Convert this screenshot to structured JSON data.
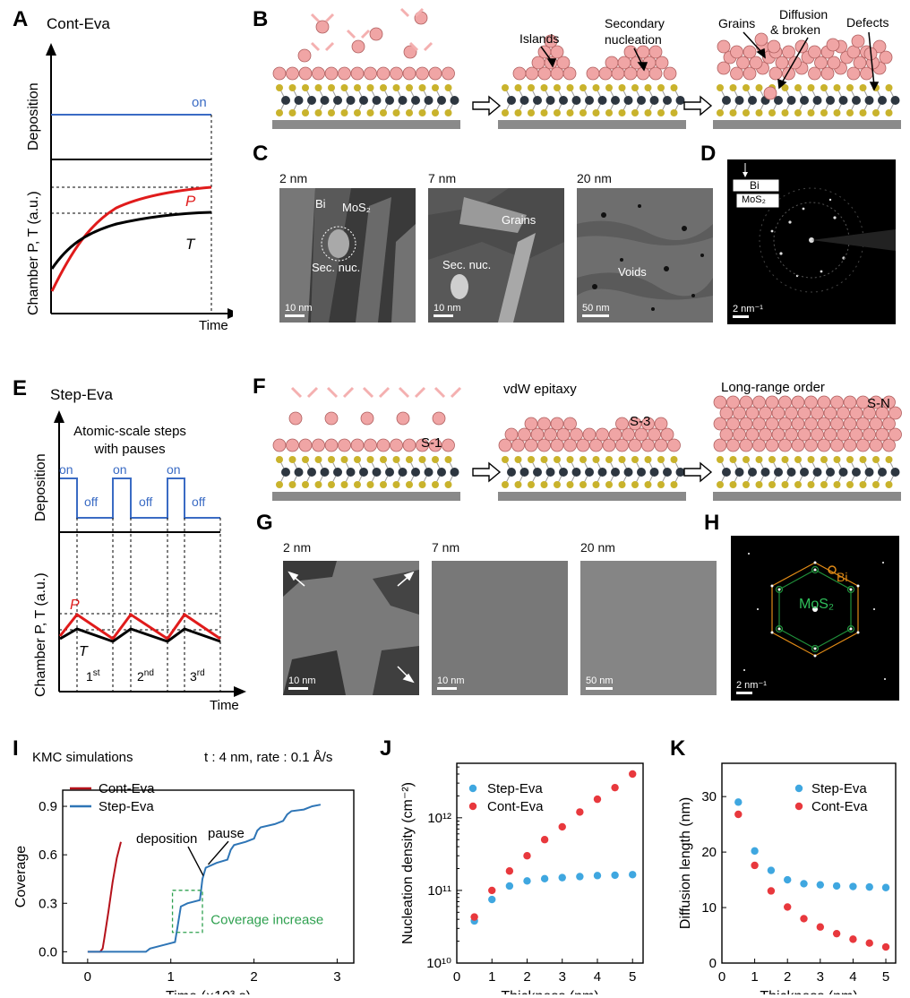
{
  "panels": {
    "A": {
      "letter": "A",
      "title": "Cont-Eva",
      "ylabel_top": "Deposition",
      "ylabel_bottom": "Chamber P, T (a.u.)",
      "xlabel": "Time",
      "on_label": "on",
      "p_label": "P",
      "t_label": "T"
    },
    "B": {
      "letter": "B",
      "islands": "Islands",
      "secondary": "Secondary\nnucleation",
      "grains": "Grains",
      "diffusion": "Diffusion\n& broken",
      "defects": "Defects"
    },
    "C": {
      "letter": "C",
      "img1_title": "2 nm",
      "img2_title": "7 nm",
      "img3_title": "20 nm",
      "bi": "Bi",
      "mos2": "MoS₂",
      "sec_nuc": "Sec. nuc.",
      "grains": "Grains",
      "sec_nuc2": "Sec. nuc.",
      "voids": "Voids",
      "scale1": "10 nm",
      "scale2": "10 nm",
      "scale3": "50 nm"
    },
    "D": {
      "letter": "D",
      "bi": "Bi",
      "mos2": "MoS₂",
      "scale": "2 nm⁻¹"
    },
    "E": {
      "letter": "E",
      "title": "Step-Eva",
      "annot": "Atomic-scale steps\nwith pauses",
      "ylabel_top": "Deposition",
      "ylabel_bottom": "Chamber P, T (a.u.)",
      "xlabel": "Time",
      "on": "on",
      "off": "off",
      "p_label": "P",
      "t_label": "T",
      "step1": "1st",
      "step2": "2nd",
      "step3": "3rd"
    },
    "F": {
      "letter": "F",
      "s1": "S-1",
      "s3": "S-3",
      "sn": "S-N",
      "vdw": "vdW epitaxy",
      "lro": "Long-range order"
    },
    "G": {
      "letter": "G",
      "img1_title": "2 nm",
      "img2_title": "7 nm",
      "img3_title": "20 nm",
      "scale1": "10 nm",
      "scale2": "10 nm",
      "scale3": "50 nm"
    },
    "H": {
      "letter": "H",
      "bi": "Bi",
      "mos2": "MoS₂",
      "scale": "2 nm⁻¹"
    },
    "I": {
      "letter": "I",
      "title": "KMC simulations",
      "subtitle": "t : 4 nm, rate : 0.1 Å/s",
      "annot_deposition": "deposition",
      "annot_pause": "pause",
      "annot_coverage": "Coverage increase"
    },
    "J": {
      "letter": "J"
    },
    "K": {
      "letter": "K"
    }
  },
  "chart_data": [
    {
      "id": "I",
      "type": "line",
      "xlabel": "Time (×10³ s)",
      "ylabel": "Coverage",
      "xlim": [
        -0.3,
        3.2
      ],
      "ylim": [
        -0.07,
        1.0
      ],
      "xticks": [
        0,
        1,
        2,
        3
      ],
      "yticks": [
        0.0,
        0.3,
        0.6,
        0.9
      ],
      "legend": "top-left",
      "series": [
        {
          "name": "Cont-Eva",
          "color": "#b5121b",
          "x": [
            0,
            0.15,
            0.18,
            0.2,
            0.25,
            0.3,
            0.35,
            0.4
          ],
          "y": [
            0,
            0,
            0.02,
            0.08,
            0.25,
            0.43,
            0.58,
            0.68
          ]
        },
        {
          "name": "Step-Eva",
          "color": "#2e75b6",
          "x": [
            0,
            0.7,
            0.75,
            0.9,
            1.05,
            1.08,
            1.12,
            1.2,
            1.35,
            1.38,
            1.42,
            1.55,
            1.68,
            1.72,
            1.76,
            1.9,
            2.0,
            2.04,
            2.08,
            2.25,
            2.35,
            2.4,
            2.45,
            2.6,
            2.7,
            2.8
          ],
          "y": [
            0,
            0,
            0.02,
            0.04,
            0.06,
            0.15,
            0.28,
            0.3,
            0.32,
            0.45,
            0.52,
            0.55,
            0.57,
            0.63,
            0.66,
            0.68,
            0.7,
            0.75,
            0.77,
            0.79,
            0.81,
            0.85,
            0.87,
            0.88,
            0.9,
            0.91
          ]
        }
      ]
    },
    {
      "id": "J",
      "type": "scatter",
      "xlabel": "Thickness (nm)",
      "ylabel": "Nucleation density (cm⁻²)",
      "xlim": [
        0,
        5.3
      ],
      "ylim_log10": [
        10,
        12.75
      ],
      "yscale": "log",
      "xticks": [
        0,
        1,
        2,
        3,
        4,
        5
      ],
      "yticks": [
        "10¹⁰",
        "10¹¹",
        "10¹²"
      ],
      "legend": "top-left",
      "series": [
        {
          "name": "Step-Eva",
          "color": "#3fa7e0",
          "x": [
            0.5,
            1,
            1.5,
            2,
            2.5,
            3,
            3.5,
            4,
            4.5,
            5
          ],
          "y": [
            38000000000.0,
            75000000000.0,
            115000000000.0,
            135000000000.0,
            145000000000.0,
            150000000000.0,
            155000000000.0,
            160000000000.0,
            162000000000.0,
            165000000000.0
          ]
        },
        {
          "name": "Cont-Eva",
          "color": "#e8383d",
          "x": [
            0.5,
            1,
            1.5,
            2,
            2.5,
            3,
            3.5,
            4,
            4.5,
            5
          ],
          "y": [
            43000000000.0,
            100000000000.0,
            185000000000.0,
            300000000000.0,
            500000000000.0,
            750000000000.0,
            1200000000000.0,
            1800000000000.0,
            2600000000000.0,
            4000000000000.0
          ]
        }
      ]
    },
    {
      "id": "K",
      "type": "scatter",
      "xlabel": "Thickness (nm)",
      "ylabel": "Diffusion length (nm)",
      "xlim": [
        0,
        5.3
      ],
      "ylim": [
        0,
        36
      ],
      "xticks": [
        0,
        1,
        2,
        3,
        4,
        5
      ],
      "yticks": [
        0,
        10,
        20,
        30
      ],
      "legend": "top-right",
      "series": [
        {
          "name": "Step-Eva",
          "color": "#3fa7e0",
          "x": [
            0.5,
            1,
            1.5,
            2,
            2.5,
            3,
            3.5,
            4,
            4.5,
            5
          ],
          "y": [
            29,
            20.2,
            16.7,
            15.0,
            14.3,
            14.1,
            13.9,
            13.8,
            13.7,
            13.6
          ]
        },
        {
          "name": "Cont-Eva",
          "color": "#e8383d",
          "x": [
            0.5,
            1,
            1.5,
            2,
            2.5,
            3,
            3.5,
            4,
            4.5,
            5
          ],
          "y": [
            26.8,
            17.6,
            13.0,
            10.1,
            8.0,
            6.5,
            5.3,
            4.3,
            3.6,
            2.9
          ]
        }
      ]
    }
  ]
}
